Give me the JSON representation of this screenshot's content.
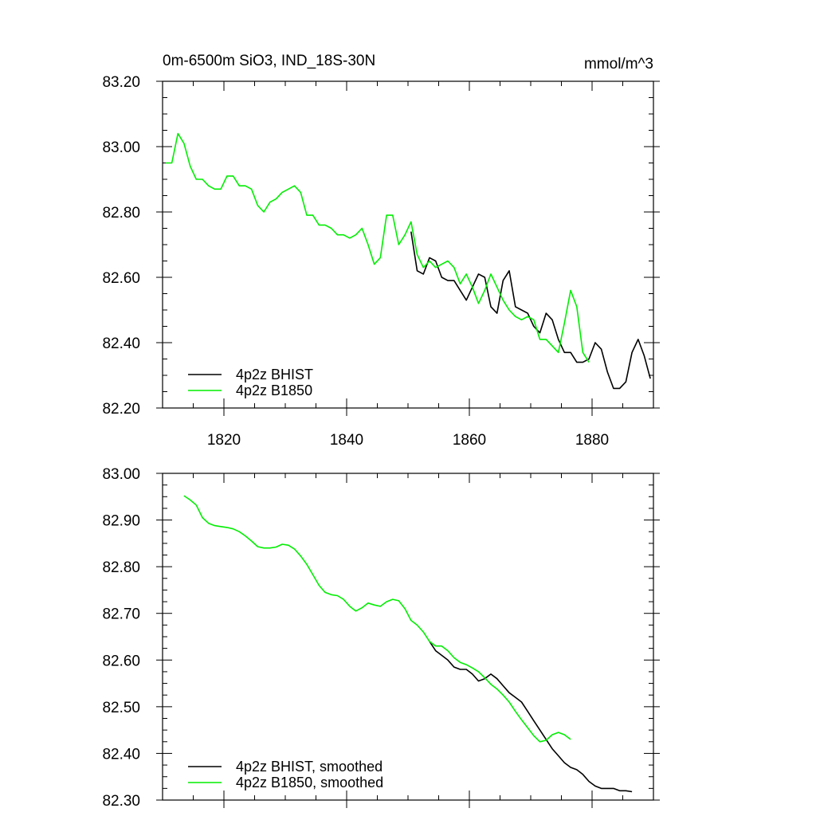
{
  "colors": {
    "BHIST": "#000000",
    "B1850": "#00ee00"
  },
  "chart_data": [
    {
      "type": "line",
      "title": "0m-6500m SiO3, IND_18S-30N",
      "units": "mmol/m^3",
      "xlim": [
        1810,
        1890
      ],
      "ylim": [
        82.2,
        83.2
      ],
      "xticks": [
        1820,
        1840,
        1860,
        1880
      ],
      "xtick_labels": [
        "1820",
        "1840",
        "1860",
        "1880"
      ],
      "yticks": [
        82.2,
        82.4,
        82.6,
        82.8,
        83.0,
        83.2
      ],
      "ytick_labels": [
        "82.20",
        "82.40",
        "82.60",
        "82.80",
        "83.00",
        "83.20"
      ],
      "legend": [
        "4p2z BHIST",
        "4p2z B1850"
      ],
      "legend_position": "bottom-left",
      "series": [
        {
          "name": "4p2z BHIST",
          "color_key": "BHIST",
          "x": [
            1850.5,
            1851.5,
            1852.5,
            1853.5,
            1854.5,
            1855.5,
            1856.5,
            1857.5,
            1858.5,
            1859.5,
            1860.5,
            1861.5,
            1862.5,
            1863.5,
            1864.5,
            1865.5,
            1866.5,
            1867.5,
            1868.5,
            1869.5,
            1870.5,
            1871.5,
            1872.5,
            1873.5,
            1874.5,
            1875.5,
            1876.5,
            1877.5,
            1878.5,
            1879.5,
            1880.5,
            1881.5,
            1882.5,
            1883.5,
            1884.5,
            1885.5,
            1886.5,
            1887.5,
            1888.5,
            1889.5
          ],
          "values": [
            82.74,
            82.62,
            82.61,
            82.66,
            82.65,
            82.6,
            82.59,
            82.59,
            82.56,
            82.53,
            82.57,
            82.61,
            82.6,
            82.51,
            82.49,
            82.59,
            82.62,
            82.51,
            82.5,
            82.49,
            82.45,
            82.43,
            82.49,
            82.47,
            82.41,
            82.37,
            82.37,
            82.34,
            82.34,
            82.35,
            82.4,
            82.38,
            82.31,
            82.26,
            82.26,
            82.28,
            82.37,
            82.41,
            82.36,
            82.29
          ]
        },
        {
          "name": "4p2z B1850",
          "color_key": "B1850",
          "x": [
            1810.5,
            1811.5,
            1812.5,
            1813.5,
            1814.5,
            1815.5,
            1816.5,
            1817.5,
            1818.5,
            1819.5,
            1820.5,
            1821.5,
            1822.5,
            1823.5,
            1824.5,
            1825.5,
            1826.5,
            1827.5,
            1828.5,
            1829.5,
            1830.5,
            1831.5,
            1832.5,
            1833.5,
            1834.5,
            1835.5,
            1836.5,
            1837.5,
            1838.5,
            1839.5,
            1840.5,
            1841.5,
            1842.5,
            1843.5,
            1844.5,
            1845.5,
            1846.5,
            1847.5,
            1848.5,
            1849.5,
            1850.5,
            1851.5,
            1852.5,
            1853.5,
            1854.5,
            1855.5,
            1856.5,
            1857.5,
            1858.5,
            1859.5,
            1860.5,
            1861.5,
            1862.5,
            1863.5,
            1864.5,
            1865.5,
            1866.5,
            1867.5,
            1868.5,
            1869.5,
            1870.5,
            1871.5,
            1872.5,
            1873.5,
            1874.5,
            1875.5,
            1876.5,
            1877.5,
            1878.5,
            1879.5
          ],
          "values": [
            82.95,
            82.95,
            83.04,
            83.01,
            82.94,
            82.9,
            82.9,
            82.88,
            82.87,
            82.87,
            82.91,
            82.91,
            82.88,
            82.88,
            82.87,
            82.82,
            82.8,
            82.83,
            82.84,
            82.86,
            82.87,
            82.88,
            82.86,
            82.79,
            82.79,
            82.76,
            82.76,
            82.75,
            82.73,
            82.73,
            82.72,
            82.73,
            82.75,
            82.7,
            82.64,
            82.66,
            82.79,
            82.79,
            82.7,
            82.73,
            82.77,
            82.67,
            82.63,
            82.65,
            82.63,
            82.64,
            82.65,
            82.63,
            82.58,
            82.61,
            82.57,
            82.52,
            82.56,
            82.61,
            82.57,
            82.53,
            82.5,
            82.48,
            82.47,
            82.48,
            82.47,
            82.41,
            82.41,
            82.39,
            82.37,
            82.46,
            82.56,
            82.51,
            82.37,
            82.34
          ]
        }
      ]
    },
    {
      "type": "line",
      "title": "",
      "xlim": [
        1810,
        1890
      ],
      "ylim": [
        82.3,
        83.0
      ],
      "xticks": [
        1820,
        1840,
        1860,
        1880
      ],
      "xtick_labels": [],
      "yticks": [
        82.3,
        82.4,
        82.5,
        82.6,
        82.7,
        82.8,
        82.9,
        83.0
      ],
      "ytick_labels": [
        "82.30",
        "82.40",
        "82.50",
        "82.60",
        "82.70",
        "82.80",
        "82.90",
        "83.00"
      ],
      "legend": [
        "4p2z BHIST, smoothed",
        "4p2z B1850, smoothed"
      ],
      "legend_position": "bottom-left",
      "series": [
        {
          "name": "4p2z BHIST, smoothed",
          "color_key": "BHIST",
          "x": [
            1853.5,
            1854.5,
            1855.5,
            1856.5,
            1857.5,
            1858.5,
            1859.5,
            1860.5,
            1861.5,
            1862.5,
            1863.5,
            1864.5,
            1865.5,
            1866.5,
            1867.5,
            1868.5,
            1869.5,
            1870.5,
            1871.5,
            1872.5,
            1873.5,
            1874.5,
            1875.5,
            1876.5,
            1877.5,
            1878.5,
            1879.5,
            1880.5,
            1881.5,
            1882.5,
            1883.5,
            1884.5,
            1885.5,
            1886.5
          ],
          "values": [
            82.64,
            82.62,
            82.61,
            82.6,
            82.585,
            82.58,
            82.58,
            82.57,
            82.555,
            82.56,
            82.57,
            82.56,
            82.545,
            82.53,
            82.52,
            82.51,
            82.49,
            82.47,
            82.45,
            82.43,
            82.41,
            82.395,
            82.38,
            82.37,
            82.365,
            82.355,
            82.34,
            82.33,
            82.325,
            82.325,
            82.325,
            82.32,
            82.32,
            82.318
          ]
        },
        {
          "name": "4p2z B1850, smoothed",
          "color_key": "B1850",
          "x": [
            1813.5,
            1814.5,
            1815.5,
            1816.5,
            1817.5,
            1818.5,
            1819.5,
            1820.5,
            1821.5,
            1822.5,
            1823.5,
            1824.5,
            1825.5,
            1826.5,
            1827.5,
            1828.5,
            1829.5,
            1830.5,
            1831.5,
            1832.5,
            1833.5,
            1834.5,
            1835.5,
            1836.5,
            1837.5,
            1838.5,
            1839.5,
            1840.5,
            1841.5,
            1842.5,
            1843.5,
            1844.5,
            1845.5,
            1846.5,
            1847.5,
            1848.5,
            1849.5,
            1850.5,
            1851.5,
            1852.5,
            1853.5,
            1854.5,
            1855.5,
            1856.5,
            1857.5,
            1858.5,
            1859.5,
            1860.5,
            1861.5,
            1862.5,
            1863.5,
            1864.5,
            1865.5,
            1866.5,
            1867.5,
            1868.5,
            1869.5,
            1870.5,
            1871.5,
            1872.5,
            1873.5,
            1874.5,
            1875.5,
            1876.5
          ],
          "values": [
            82.952,
            82.943,
            82.932,
            82.905,
            82.893,
            82.888,
            82.886,
            82.884,
            82.881,
            82.875,
            82.866,
            82.855,
            82.843,
            82.84,
            82.84,
            82.842,
            82.848,
            82.846,
            82.838,
            82.823,
            82.805,
            82.783,
            82.76,
            82.745,
            82.74,
            82.738,
            82.73,
            82.715,
            82.705,
            82.712,
            82.722,
            82.718,
            82.715,
            82.725,
            82.73,
            82.727,
            82.71,
            82.685,
            82.675,
            82.66,
            82.64,
            82.63,
            82.63,
            82.62,
            82.605,
            82.595,
            82.59,
            82.583,
            82.575,
            82.562,
            82.548,
            82.538,
            82.525,
            82.51,
            82.49,
            82.472,
            82.455,
            82.438,
            82.425,
            82.428,
            82.44,
            82.445,
            82.44,
            82.43
          ]
        }
      ]
    }
  ]
}
